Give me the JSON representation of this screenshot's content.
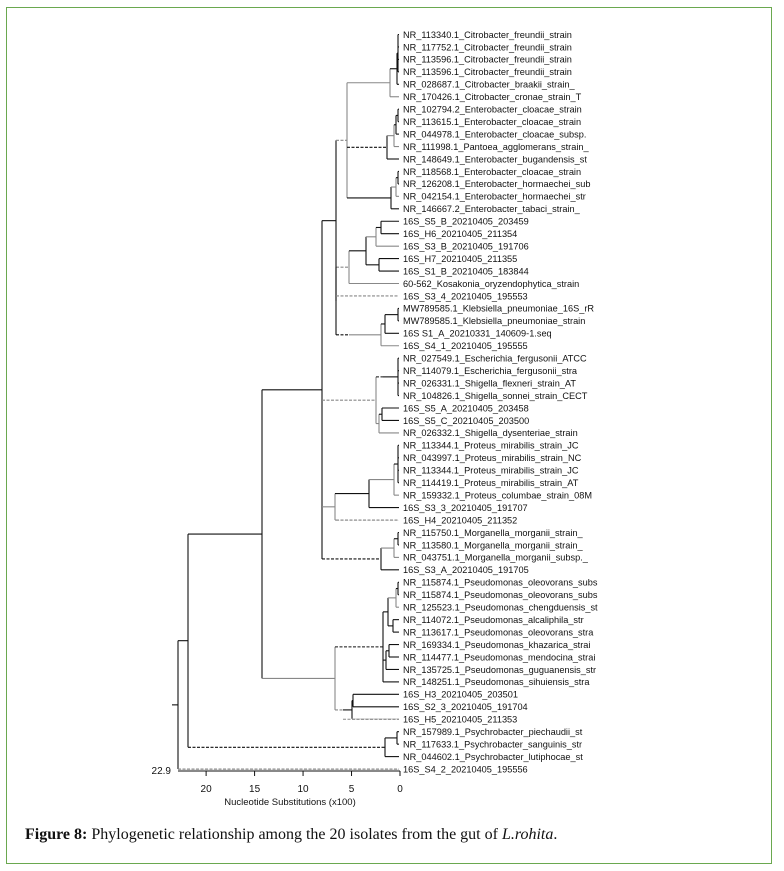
{
  "frame_color": "#6aa84f",
  "tree": {
    "leaves": [
      "NR_113340.1_Citrobacter_freundii_strain",
      "NR_117752.1_Citrobacter_freundii_strain",
      "NR_113596.1_Citrobacter_freundii_strain",
      "NR_113596.1_Citrobacter_freundii_strain",
      "NR_028687.1_Citrobacter_braakii_strain_",
      "NR_170426.1_Citrobacter_cronae_strain_T",
      "NR_102794.2_Enterobacter_cloacae_strain",
      "NR_113615.1_Enterobacter_cloacae_strain",
      "NR_044978.1_Enterobacter_cloacae_subsp.",
      "NR_111998.1_Pantoea_agglomerans_strain_",
      "NR_148649.1_Enterobacter_bugandensis_st",
      "NR_118568.1_Enterobacter_cloacae_strain",
      "NR_126208.1_Enterobacter_hormaechei_sub",
      "NR_042154.1_Enterobacter_hormaechei_str",
      "NR_146667.2_Enterobacter_tabaci_strain_",
      "16S_S5_B_20210405_203459",
      "16S_H6_20210405_211354",
      "16S_S3_B_20210405_191706",
      "16S_H7_20210405_211355",
      "16S_S1_B_20210405_183844",
      "60-562_Kosakonia_oryzendophytica_strain",
      "16S_S3_4_20210405_195553",
      "MW789585.1_Klebsiella_pneumoniae_16S_rR",
      "MW789585.1_Klebsiella_pneumoniae_strain",
      "16S S1_A_20210331_140609-1.seq",
      "16S_S4_1_20210405_195555",
      "NR_027549.1_Escherichia_fergusonii_ATCC",
      "NR_114079.1_Escherichia_fergusonii_stra",
      "NR_026331.1_Shigella_flexneri_strain_AT",
      "NR_104826.1_Shigella_sonnei_strain_CECT",
      "16S_S5_A_20210405_203458",
      "16S_S5_C_20210405_203500",
      "NR_026332.1_Shigella_dysenteriae_strain",
      "NR_113344.1_Proteus_mirabilis_strain_JC",
      "NR_043997.1_Proteus_mirabilis_strain_NC",
      "NR_113344.1_Proteus_mirabilis_strain_JC",
      "NR_114419.1_Proteus_mirabilis_strain_AT",
      "NR_159332.1_Proteus_columbae_strain_08M",
      "16S_S3_3_20210405_191707",
      "16S_H4_20210405_211352",
      "NR_115750.1_Morganella_morganii_strain_",
      "NR_113580.1_Morganella_morganii_strain_",
      "NR_043751.1_Morganella_morganii_subsp._",
      "16S_S3_A_20210405_191705",
      "NR_115874.1_Pseudomonas_oleovorans_subs",
      "NR_115874.1_Pseudomonas_oleovorans_subs",
      "NR_125523.1_Pseudomonas_chengduensis_st",
      "NR_114072.1_Pseudomonas_alcaliphila_str",
      "NR_113617.1_Pseudomonas_oleovorans_stra",
      "NR_169334.1_Pseudomonas_khazarica_strai",
      "NR_114477.1_Pseudomonas_mendocina_strai",
      "NR_135725.1_Pseudomonas_guguanensis_str",
      "NR_148251.1_Pseudomonas_sihuiensis_stra",
      "16S_H3_20210405_203501",
      "16S_S2_3_20210405_191704",
      "16S_H5_20210405_211353",
      "NR_157989.1_Psychrobacter_piechaudii_st",
      "NR_117633.1_Psychrobacter_sanguinis_str",
      "NR_044602.1_Psychrobacter_lutiphocae_st",
      "16S_S4_2_20210405_195556"
    ],
    "root_depth_label": "22.9",
    "axis": {
      "ticks": [
        "20",
        "15",
        "10",
        "5",
        "0"
      ],
      "tick_values": [
        20,
        15,
        10,
        5,
        0
      ],
      "range": [
        22.9,
        0
      ],
      "label": "Nucleotide Substitutions (x100)"
    }
  },
  "caption": {
    "label": "Figure 8:",
    "text": " Phylogenetic relationship among the 20 isolates from the gut of ",
    "species": "L.rohita",
    "end": "."
  }
}
